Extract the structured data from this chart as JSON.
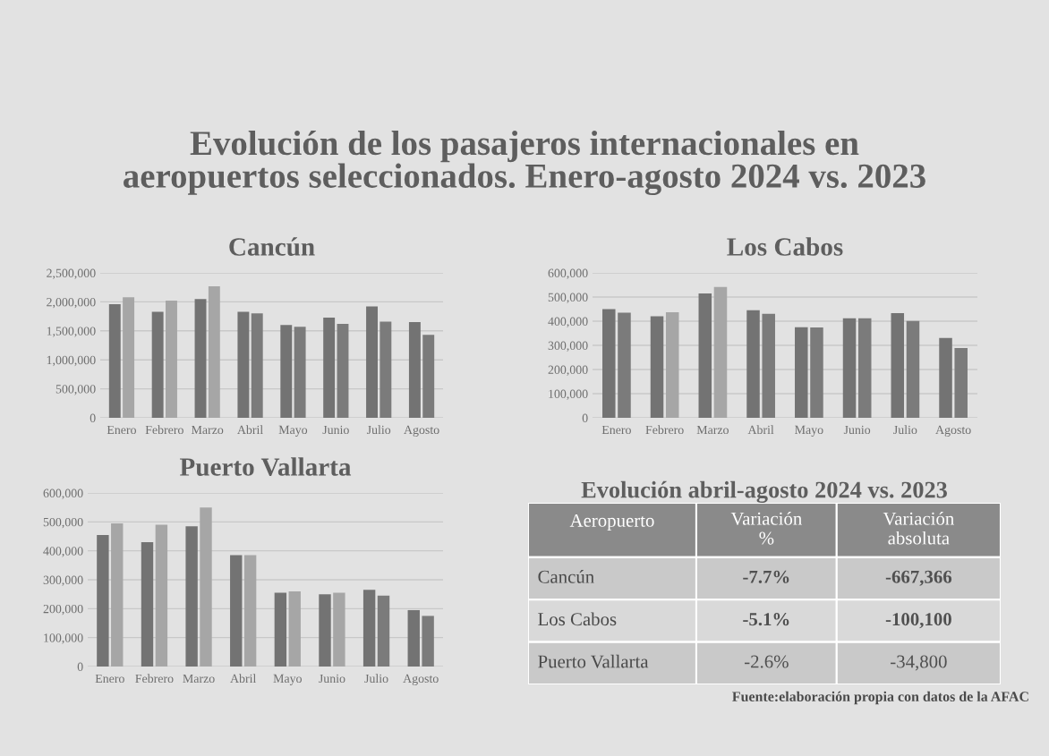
{
  "chart_data": [
    {
      "type": "bar",
      "title": "Cancún",
      "annotations": [
        "Evolución de los pasajeros internacionales en\naeropuertos seleccionados. Enero-agosto 2024 vs. 2023"
      ],
      "categories": [
        "Enero",
        "Febrero",
        "Marzo",
        "Abril",
        "Mayo",
        "Junio",
        "Julio",
        "Agosto"
      ],
      "series": [
        {
          "color": "#737373",
          "values": [
            1960000,
            1830000,
            2050000,
            1830000,
            1600000,
            1730000,
            1920000,
            1650000
          ]
        },
        {
          "colors": [
            "#a6a6a6",
            "#a6a6a6",
            "#a6a6a6",
            "#7b7b7b",
            "#7b7b7b",
            "#7b7b7b",
            "#7b7b7b",
            "#7b7b7b"
          ],
          "values": [
            2080000,
            2020000,
            2270000,
            1800000,
            1570000,
            1620000,
            1660000,
            1430000
          ]
        }
      ],
      "ylim": [
        0,
        2500000
      ],
      "yticks": [
        0,
        {
          "value": 500000,
          "label": "500,000"
        },
        {
          "value": 1000000,
          "label": "1,000,000"
        },
        {
          "value": 1500000,
          "label": "1,500,000"
        },
        {
          "value": 2000000,
          "label": "2,000,000"
        },
        {
          "value": 2500000,
          "label": "2,500,000"
        }
      ],
      "grid": "y"
    },
    {
      "type": "bar",
      "title": "Los Cabos",
      "categories": [
        "Enero",
        "Febrero",
        "Marzo",
        "Abril",
        "Mayo",
        "Junio",
        "Julio",
        "Agosto"
      ],
      "series": [
        {
          "color": "#737373",
          "values": [
            450000,
            420000,
            515000,
            445000,
            375000,
            412000,
            433000,
            331000
          ]
        },
        {
          "colors": [
            "#7b7b7b",
            "#a6a6a6",
            "#a6a6a6",
            "#7b7b7b",
            "#7b7b7b",
            "#7b7b7b",
            "#7b7b7b",
            "#7b7b7b"
          ],
          "values": [
            435000,
            437000,
            542000,
            431000,
            374000,
            412000,
            401000,
            289000
          ]
        }
      ],
      "ylim": [
        0,
        600000
      ],
      "yticks": [
        0,
        {
          "value": 100000,
          "label": "100,000"
        },
        {
          "value": 200000,
          "label": "200,000"
        },
        {
          "value": 300000,
          "label": "300,000"
        },
        {
          "value": 400000,
          "label": "400,000"
        },
        {
          "value": 500000,
          "label": "500,000"
        },
        {
          "value": 600000,
          "label": "600,000"
        }
      ],
      "grid": "y"
    },
    {
      "type": "bar",
      "title": "Puerto Vallarta",
      "categories": [
        "Enero",
        "Febrero",
        "Marzo",
        "Abril",
        "Mayo",
        "Junio",
        "Julio",
        "Agosto"
      ],
      "series": [
        {
          "color": "#737373",
          "values": [
            455000,
            430000,
            485000,
            385000,
            255000,
            250000,
            265000,
            195000
          ]
        },
        {
          "colors": [
            "#a6a6a6",
            "#a6a6a6",
            "#a6a6a6",
            "#a6a6a6",
            "#a6a6a6",
            "#a6a6a6",
            "#7b7b7b",
            "#7b7b7b"
          ],
          "values": [
            495000,
            490000,
            550000,
            385000,
            260000,
            255000,
            245000,
            175000
          ]
        }
      ],
      "ylim": [
        0,
        600000
      ],
      "yticks": [
        0,
        {
          "value": 100000,
          "label": "100,000"
        },
        {
          "value": 200000,
          "label": "200,000"
        },
        {
          "value": 300000,
          "label": "300,000"
        },
        {
          "value": 400000,
          "label": "400,000"
        },
        {
          "value": 500000,
          "label": "500,000"
        },
        {
          "value": 600000,
          "label": "600,000"
        }
      ],
      "grid": "y"
    },
    {
      "type": "other",
      "title": "Evolución abril-agosto 2024 vs. 2023",
      "ylabel": "Aeropuerto",
      "categories": [
        "Variación\n%",
        "Variación\nabsoluta"
      ],
      "y_categories": [
        "Cancún",
        "Los Cabos",
        "Puerto Vallarta"
      ],
      "cell_labels": [
        [
          "-7.7%",
          "-667,366"
        ],
        [
          "-5.1%",
          "-100,100"
        ],
        [
          "-2.6%",
          "-34,800"
        ]
      ],
      "annotations": [
        "Fuente:elaboración propia con datos de la AFAC"
      ]
    }
  ]
}
